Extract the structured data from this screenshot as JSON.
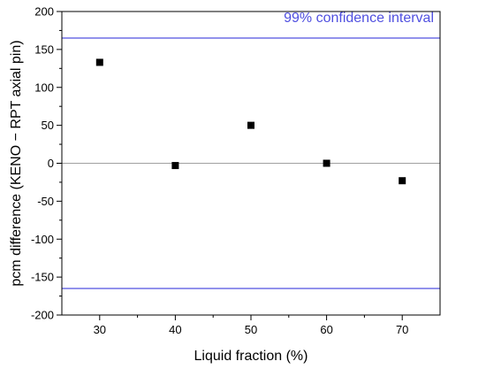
{
  "chart_data": {
    "type": "scatter",
    "xlabel": "Liquid fraction (%)",
    "ylabel": "pcm difference (KENO − RPT axial pin)",
    "xlim": [
      25,
      75
    ],
    "ylim": [
      -200,
      200
    ],
    "x_ticks": [
      30,
      40,
      50,
      60,
      70
    ],
    "y_ticks": [
      -200,
      -150,
      -100,
      -50,
      0,
      50,
      100,
      150,
      200
    ],
    "series": [
      {
        "x": [
          30,
          40,
          50,
          60,
          70
        ],
        "values": [
          133,
          -3,
          50,
          0,
          -23
        ]
      }
    ],
    "reference_lines": {
      "zero": {
        "y": 0,
        "color": "#a0a0a0"
      },
      "confidence": {
        "label": "99% confidence interval",
        "values": [
          165,
          -165
        ],
        "color": "#5050e0"
      }
    },
    "marker_color": "#000000",
    "grid": false
  }
}
